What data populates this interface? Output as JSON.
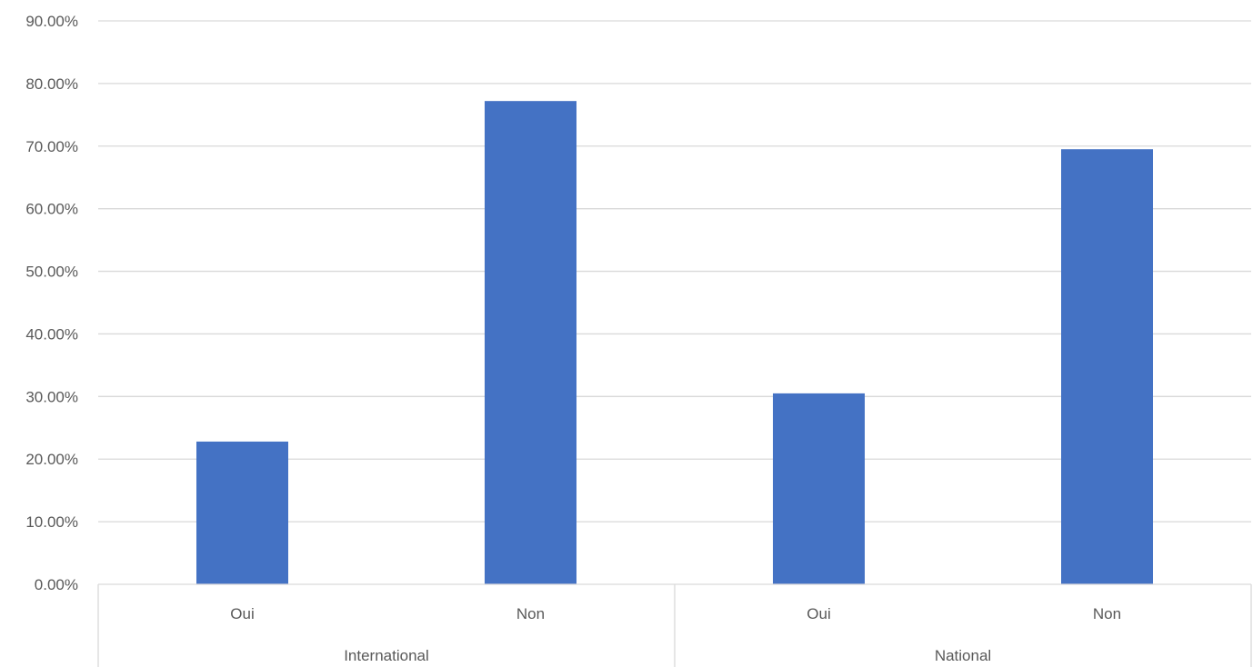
{
  "chart_data": {
    "type": "bar",
    "groups": [
      {
        "name": "International",
        "categories": [
          "Oui",
          "Non"
        ]
      },
      {
        "name": "National",
        "categories": [
          "Oui",
          "Non"
        ]
      }
    ],
    "categories": [
      "Oui",
      "Non",
      "Oui",
      "Non"
    ],
    "values": [
      0.228,
      0.772,
      0.305,
      0.695
    ],
    "y_ticks": [
      "0.00%",
      "10.00%",
      "20.00%",
      "30.00%",
      "40.00%",
      "50.00%",
      "60.00%",
      "70.00%",
      "80.00%",
      "90.00%"
    ],
    "ylim": [
      0,
      0.9
    ],
    "title": "",
    "xlabel": "",
    "ylabel": "",
    "grid": true,
    "legend": "none",
    "colors": {
      "bar": "#4472C4",
      "grid": "#D9D9D9",
      "text": "#595959"
    }
  }
}
